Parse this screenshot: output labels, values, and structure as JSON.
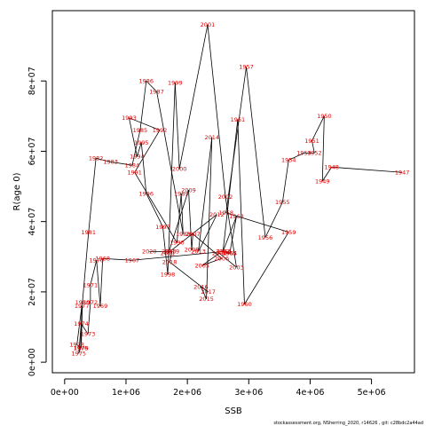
{
  "footer": "stockassessment.org, NSherring_2020, r14626 ,  git: c28bdc2a44ad",
  "chart_data": {
    "type": "line",
    "title": "",
    "xlabel": "SSB",
    "ylabel": "R(age 0)",
    "xlim": [
      -200000,
      5700000
    ],
    "ylim": [
      -3000000,
      100000000
    ],
    "xticks": [
      {
        "value": 0,
        "label": "0e+00"
      },
      {
        "value": 1000000,
        "label": "1e+06"
      },
      {
        "value": 2000000,
        "label": "2e+06"
      },
      {
        "value": 3000000,
        "label": "3e+06"
      },
      {
        "value": 4000000,
        "label": "4e+06"
      },
      {
        "value": 5000000,
        "label": "5e+06"
      }
    ],
    "yticks": [
      {
        "value": 0,
        "label": "0e+00"
      },
      {
        "value": 20000000,
        "label": "2e+07"
      },
      {
        "value": 40000000,
        "label": "4e+07"
      },
      {
        "value": 60000000,
        "label": "6e+07"
      },
      {
        "value": 80000000,
        "label": "8e+07"
      }
    ],
    "line_color": "#000000",
    "label_color": "#e00000",
    "grid": false,
    "series": [
      {
        "points": [
          {
            "year": "1947",
            "x": 5500000,
            "y": 54000000
          },
          {
            "year": "1948",
            "x": 4350000,
            "y": 55500000
          },
          {
            "year": "1949",
            "x": 4200000,
            "y": 51500000
          },
          {
            "year": "1950",
            "x": 4230000,
            "y": 70000000
          },
          {
            "year": "1951",
            "x": 4030000,
            "y": 63000000
          },
          {
            "year": "1952",
            "x": 4070000,
            "y": 59500000
          },
          {
            "year": "1953",
            "x": 3900000,
            "y": 59500000
          },
          {
            "year": "1954",
            "x": 3650000,
            "y": 57500000
          },
          {
            "year": "1955",
            "x": 3550000,
            "y": 45500000
          },
          {
            "year": "1956",
            "x": 3270000,
            "y": 35500000
          },
          {
            "year": "1957",
            "x": 2960000,
            "y": 84000000
          },
          {
            "year": "1958",
            "x": 2630000,
            "y": 42500000
          },
          {
            "year": "1959",
            "x": 3650000,
            "y": 37000000
          },
          {
            "year": "1960",
            "x": 2930000,
            "y": 16500000
          },
          {
            "year": "1961",
            "x": 2820000,
            "y": 69000000
          },
          {
            "year": "1962",
            "x": 2580000,
            "y": 31500000
          },
          {
            "year": "1963",
            "x": 2800000,
            "y": 41500000
          },
          {
            "year": "1964",
            "x": 2690000,
            "y": 31000000
          },
          {
            "year": "1965",
            "x": 2680000,
            "y": 31000000
          },
          {
            "year": "1966",
            "x": 2600000,
            "y": 31500000
          },
          {
            "year": "1967",
            "x": 1100000,
            "y": 29000000
          },
          {
            "year": "1968",
            "x": 620000,
            "y": 29500000
          },
          {
            "year": "1969",
            "x": 580000,
            "y": 16000000
          },
          {
            "year": "1970",
            "x": 520000,
            "y": 29000000
          },
          {
            "year": "1971",
            "x": 420000,
            "y": 22000000
          },
          {
            "year": "1972",
            "x": 420000,
            "y": 17000000
          },
          {
            "year": "1973",
            "x": 380000,
            "y": 8000000
          },
          {
            "year": "1974",
            "x": 270000,
            "y": 11000000
          },
          {
            "year": "1975",
            "x": 230000,
            "y": 2500000
          },
          {
            "year": "1976",
            "x": 260000,
            "y": 4000000
          },
          {
            "year": "1977",
            "x": 280000,
            "y": 16000000
          },
          {
            "year": "1978",
            "x": 200000,
            "y": 5000000
          },
          {
            "year": "1979",
            "x": 270000,
            "y": 4000000
          },
          {
            "year": "1980",
            "x": 290000,
            "y": 17000000
          },
          {
            "year": "1981",
            "x": 390000,
            "y": 37000000
          },
          {
            "year": "1982",
            "x": 510000,
            "y": 58000000
          },
          {
            "year": "1983",
            "x": 750000,
            "y": 57000000
          },
          {
            "year": "1984",
            "x": 1100000,
            "y": 56000000
          },
          {
            "year": "1985",
            "x": 1230000,
            "y": 66000000
          },
          {
            "year": "1986",
            "x": 1330000,
            "y": 80000000
          },
          {
            "year": "1987",
            "x": 1500000,
            "y": 77000000
          },
          {
            "year": "1988",
            "x": 1930000,
            "y": 36500000
          },
          {
            "year": "1989",
            "x": 1900000,
            "y": 48000000
          },
          {
            "year": "1990",
            "x": 1830000,
            "y": 34000000
          },
          {
            "year": "1991",
            "x": 1140000,
            "y": 54000000
          },
          {
            "year": "1992",
            "x": 1550000,
            "y": 66000000
          },
          {
            "year": "1993",
            "x": 1050000,
            "y": 69500000
          },
          {
            "year": "1994",
            "x": 1180000,
            "y": 58500000
          },
          {
            "year": "1995",
            "x": 1250000,
            "y": 62500000
          },
          {
            "year": "1996",
            "x": 1330000,
            "y": 48000000
          },
          {
            "year": "1997",
            "x": 1600000,
            "y": 38500000
          },
          {
            "year": "1998",
            "x": 1680000,
            "y": 25000000
          },
          {
            "year": "1999",
            "x": 1800000,
            "y": 79500000
          },
          {
            "year": "2000",
            "x": 1870000,
            "y": 55000000
          },
          {
            "year": "2001",
            "x": 2330000,
            "y": 96000000
          },
          {
            "year": "2002",
            "x": 2620000,
            "y": 47000000
          },
          {
            "year": "2003",
            "x": 2800000,
            "y": 27000000
          },
          {
            "year": "2004",
            "x": 2520000,
            "y": 31000000
          },
          {
            "year": "2005",
            "x": 2240000,
            "y": 27500000
          },
          {
            "year": "2006",
            "x": 2560000,
            "y": 29500000
          },
          {
            "year": "2007",
            "x": 2090000,
            "y": 36500000
          },
          {
            "year": "2008",
            "x": 2070000,
            "y": 32000000
          },
          {
            "year": "2009",
            "x": 2020000,
            "y": 49000000
          },
          {
            "year": "2010",
            "x": 1700000,
            "y": 31500000
          },
          {
            "year": "2011",
            "x": 1680000,
            "y": 31000000
          },
          {
            "year": "2012",
            "x": 2480000,
            "y": 42000000
          },
          {
            "year": "2013",
            "x": 2180000,
            "y": 31500000
          },
          {
            "year": "2014",
            "x": 2400000,
            "y": 64000000
          },
          {
            "year": "2015",
            "x": 2310000,
            "y": 18000000
          },
          {
            "year": "2016",
            "x": 2220000,
            "y": 21500000
          },
          {
            "year": "2017",
            "x": 2340000,
            "y": 20000000
          },
          {
            "year": "2018",
            "x": 1710000,
            "y": 28500000
          },
          {
            "year": "2019",
            "x": 1750000,
            "y": 31500000
          },
          {
            "year": "2020",
            "x": 1380000,
            "y": 31500000
          }
        ]
      }
    ]
  }
}
